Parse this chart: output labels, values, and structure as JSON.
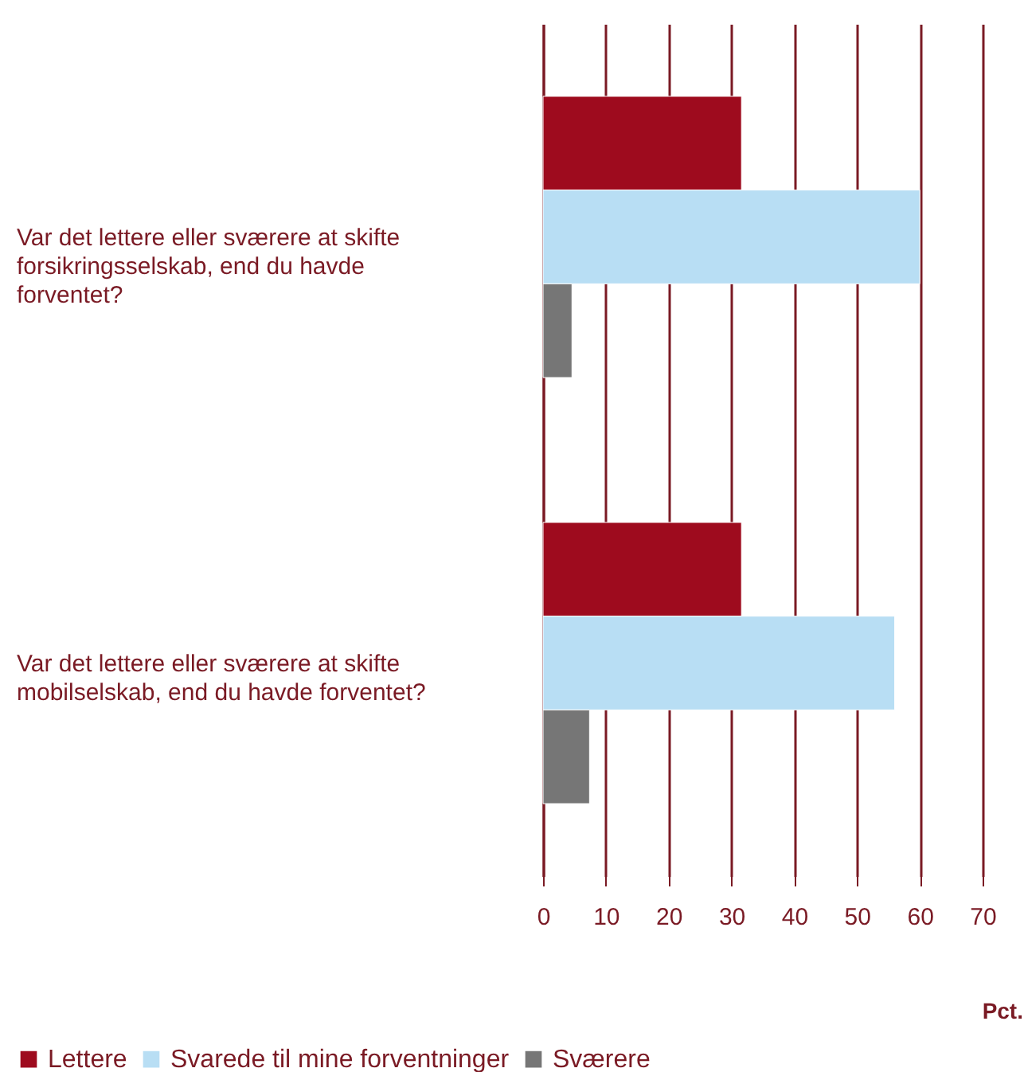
{
  "chart_data": {
    "type": "bar",
    "orientation": "horizontal",
    "xlabel": "Pct.",
    "categories": [
      "Var det lettere eller sværere at skifte forsikringsselskab, end du havde forventet?",
      "Var det lettere eller sværere at skifte mobilselskab, end du havde forventet?"
    ],
    "series": [
      {
        "name": "Lettere",
        "color": "#9e0b1e",
        "values": [
          31.6,
          31.6
        ]
      },
      {
        "name": "Svarede til mine forventninger",
        "color": "#b8def4",
        "values": [
          60,
          56
        ]
      },
      {
        "name": "Sværere",
        "color": "#767676",
        "values": [
          4.6,
          7.4
        ]
      }
    ],
    "xlim": [
      0,
      70
    ],
    "xticks": [
      0,
      10,
      20,
      30,
      40,
      50,
      60,
      70
    ],
    "grid": "x",
    "legend": "bottom left"
  }
}
